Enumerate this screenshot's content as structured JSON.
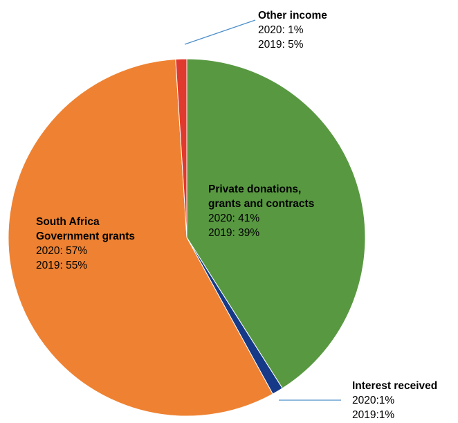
{
  "chart_data": {
    "type": "pie",
    "slices": [
      {
        "key": "private",
        "label_lines": [
          "Private donations,",
          "grants and contracts"
        ],
        "value": 41,
        "text_2020": "2020: 41%",
        "text_2019": "2019: 39%",
        "color": "#589841"
      },
      {
        "key": "interest",
        "label_lines": [
          "Interest received"
        ],
        "value": 1,
        "text_2020": "2020:1%",
        "text_2019": "2019:1%",
        "color": "#163a87"
      },
      {
        "key": "government",
        "label_lines": [
          "South Africa",
          "Government grants"
        ],
        "value": 57,
        "text_2020": "2020: 57%",
        "text_2019": "2019: 55%",
        "color": "#ee8232"
      },
      {
        "key": "other",
        "label_lines": [
          "Other income"
        ],
        "value": 1,
        "text_2020": "2020: 1%",
        "text_2019": "2019: 5%",
        "color": "#e03a2e"
      }
    ],
    "leader_color": "#4d8fc9"
  }
}
